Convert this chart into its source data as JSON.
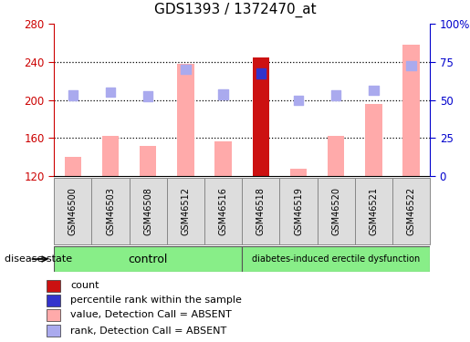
{
  "title": "GDS1393 / 1372470_at",
  "samples": [
    "GSM46500",
    "GSM46503",
    "GSM46508",
    "GSM46512",
    "GSM46516",
    "GSM46518",
    "GSM46519",
    "GSM46520",
    "GSM46521",
    "GSM46522"
  ],
  "bar_values": [
    140,
    162,
    152,
    238,
    157,
    245,
    128,
    162,
    196,
    258
  ],
  "rank_dots": [
    205,
    208,
    204,
    232,
    206,
    228,
    200,
    205,
    210,
    236
  ],
  "bar_colors": [
    "#ffaaaa",
    "#ffaaaa",
    "#ffaaaa",
    "#ffaaaa",
    "#ffaaaa",
    "#cc1111",
    "#ffaaaa",
    "#ffaaaa",
    "#ffaaaa",
    "#ffaaaa"
  ],
  "rank_colors": [
    "#aaaaee",
    "#aaaaee",
    "#aaaaee",
    "#aaaaee",
    "#aaaaee",
    "#3333cc",
    "#aaaaee",
    "#aaaaee",
    "#aaaaee",
    "#aaaaee"
  ],
  "ylim_left": [
    120,
    280
  ],
  "ylim_right": [
    0,
    100
  ],
  "yticks_left": [
    120,
    160,
    200,
    240,
    280
  ],
  "yticks_right": [
    0,
    25,
    50,
    75,
    100
  ],
  "yticklabels_right": [
    "0",
    "25",
    "50",
    "75",
    "100%"
  ],
  "control_n": 5,
  "disease_n": 5,
  "control_label": "control",
  "disease_label": "diabetes-induced erectile dysfunction",
  "group_label": "disease state",
  "legend_items": [
    {
      "label": "count",
      "color": "#cc1111"
    },
    {
      "label": "percentile rank within the sample",
      "color": "#3333cc"
    },
    {
      "label": "value, Detection Call = ABSENT",
      "color": "#ffaaaa"
    },
    {
      "label": "rank, Detection Call = ABSENT",
      "color": "#aaaaee"
    }
  ],
  "bar_width": 0.45,
  "dot_size": 55,
  "background_color": "#ffffff",
  "plot_bg_color": "#ffffff",
  "left_tick_color": "#cc0000",
  "right_tick_color": "#0000cc",
  "gridline_color": "#000000",
  "label_box_color": "#dddddd",
  "label_box_edge": "#888888",
  "group_box_color": "#88ee88",
  "group_box_edge": "#555555"
}
